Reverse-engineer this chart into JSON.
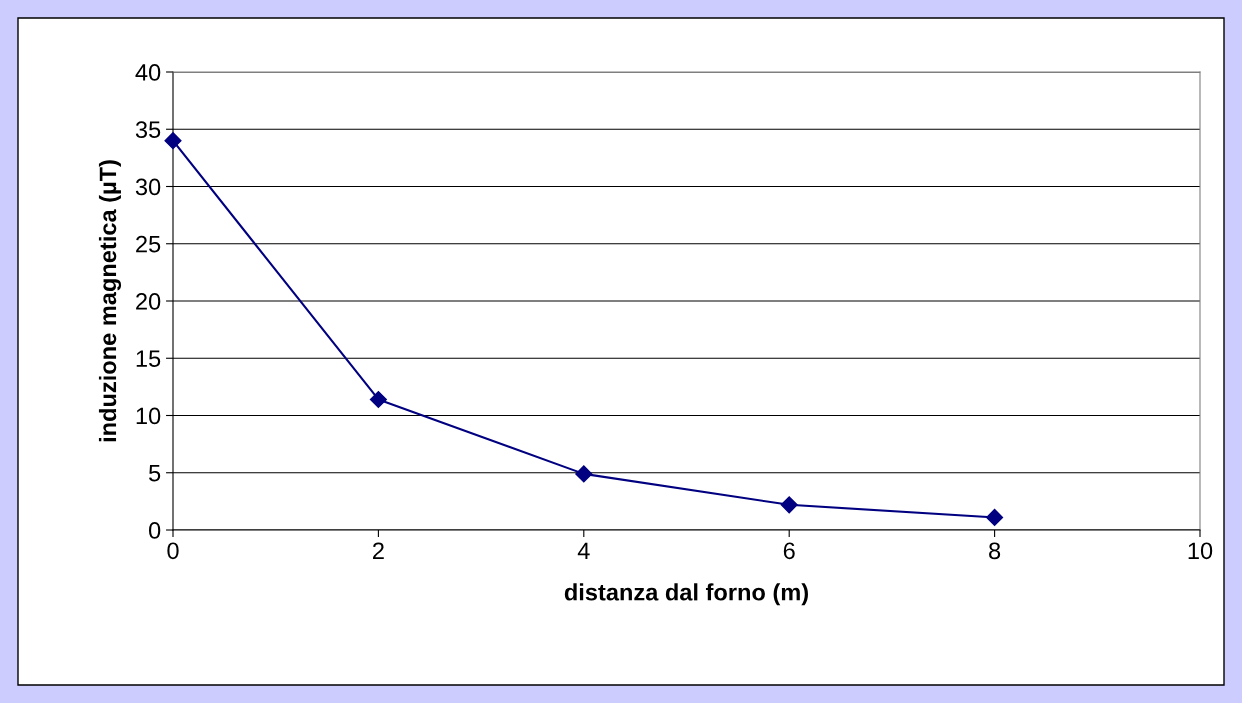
{
  "chart_data": {
    "type": "line",
    "xlabel": "distanza dal forno (m)",
    "ylabel": "induzione magnetica (µT)",
    "x": [
      0,
      2,
      4,
      6,
      8
    ],
    "series": [
      {
        "color": "#000080",
        "values": [
          34,
          11.4,
          4.9,
          2.2,
          1.1
        ]
      }
    ],
    "xlim": [
      0,
      10
    ],
    "xticks": [
      0,
      2,
      4,
      6,
      8,
      10
    ],
    "ylim": [
      0,
      40
    ],
    "yticks": [
      0,
      5,
      10,
      15,
      20,
      25,
      30,
      35,
      40
    ],
    "grid": "y",
    "marker": "diamond",
    "line_style": "solid"
  }
}
